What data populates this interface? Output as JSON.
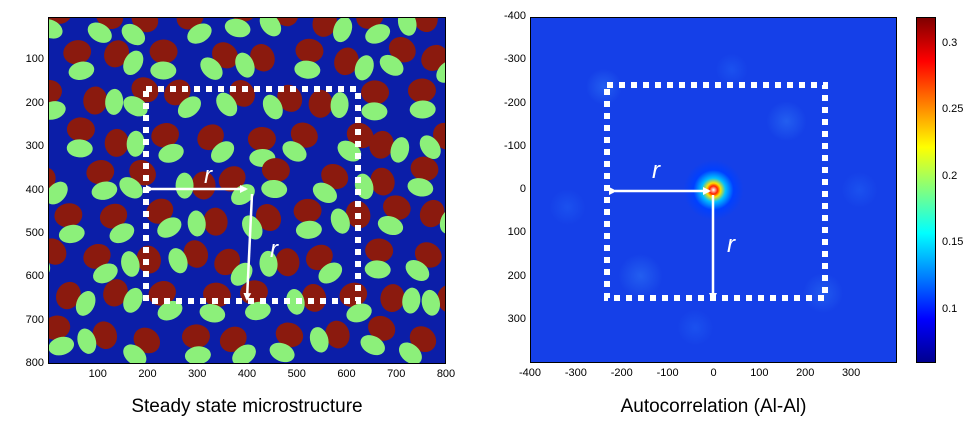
{
  "panels": [
    {
      "caption": "Steady state microstructure",
      "x_ticks": [
        "100",
        "200",
        "300",
        "400",
        "500",
        "600",
        "700",
        "800"
      ],
      "y_ticks": [
        "100",
        "200",
        "300",
        "400",
        "500",
        "600",
        "700",
        "800"
      ],
      "annotation_r_horizontal": "r",
      "annotation_r_vertical": "r",
      "colors": {
        "matrix": "#0b1ea8",
        "phase_a": "#8b1a0e",
        "phase_b": "#8cf07a"
      }
    },
    {
      "caption": "Autocorrelation (Al-Al)",
      "x_ticks": [
        "-400",
        "-300",
        "-200",
        "-100",
        "0",
        "100",
        "200",
        "300"
      ],
      "y_ticks": [
        "-400",
        "-300",
        "-200",
        "-100",
        "0",
        "100",
        "200",
        "300"
      ],
      "annotation_r_horizontal": "r",
      "annotation_r_vertical": "r"
    }
  ],
  "colorbar": {
    "ticks": [
      "0.3",
      "0.25",
      "0.2",
      "0.15",
      "0.1"
    ],
    "colors": [
      "#00008f",
      "#0000ff",
      "#0080ff",
      "#00ffff",
      "#80ff80",
      "#ffff00",
      "#ff8000",
      "#ff0000",
      "#800000"
    ]
  }
}
